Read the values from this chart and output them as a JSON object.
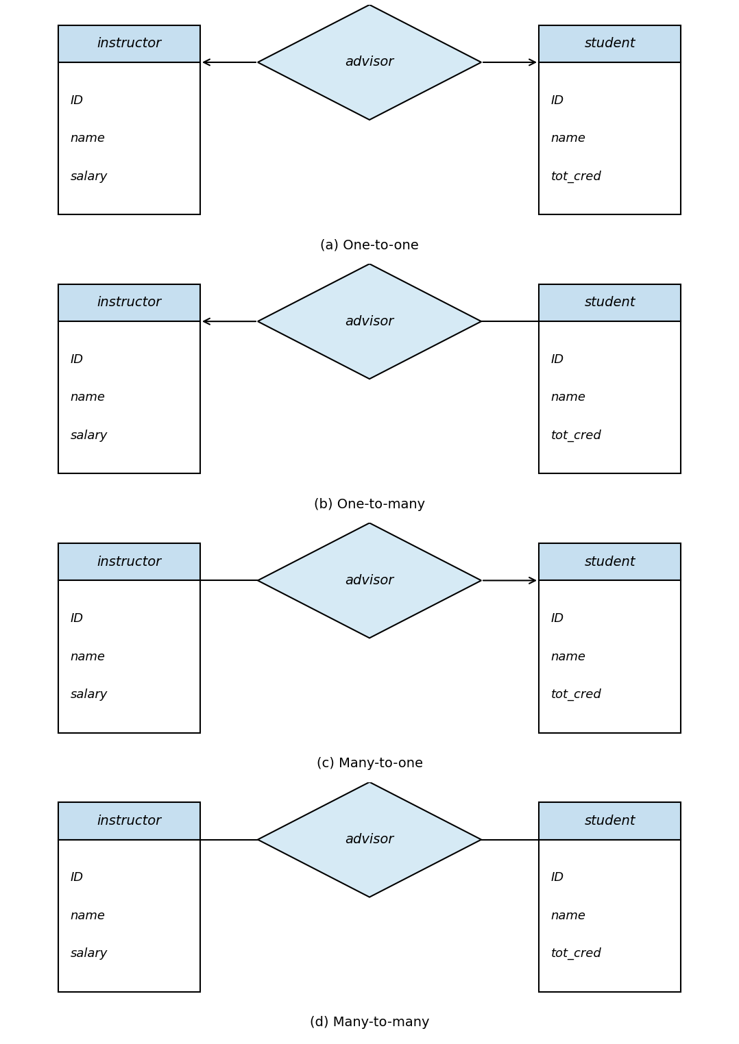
{
  "diagrams": [
    {
      "label": "(a) One-to-one",
      "arrow_left": true,
      "arrow_right": true
    },
    {
      "label": "(b) One-to-many",
      "arrow_left": true,
      "arrow_right": false
    },
    {
      "label": "(c) Many-to-one",
      "arrow_left": false,
      "arrow_right": true
    },
    {
      "label": "(d) Many-to-many",
      "arrow_left": false,
      "arrow_right": false
    }
  ],
  "entity_header_color": "#c6dff0",
  "entity_header_edge": "#000000",
  "entity_body_color": "#ffffff",
  "entity_body_edge": "#000000",
  "relation_fill": "#d6eaf5",
  "relation_edge": "#000000",
  "left_entity_name": "instructor",
  "left_entity_attrs": [
    "ID",
    "name",
    "salary"
  ],
  "right_entity_name": "student",
  "right_entity_attrs": [
    "ID",
    "name",
    "tot_cred"
  ],
  "relation_name": "advisor",
  "background_color": "#ffffff",
  "text_color": "#000000",
  "label_fontsize": 14,
  "entity_name_fontsize": 14,
  "attr_fontsize": 13,
  "relation_fontsize": 14,
  "line_width": 1.5
}
